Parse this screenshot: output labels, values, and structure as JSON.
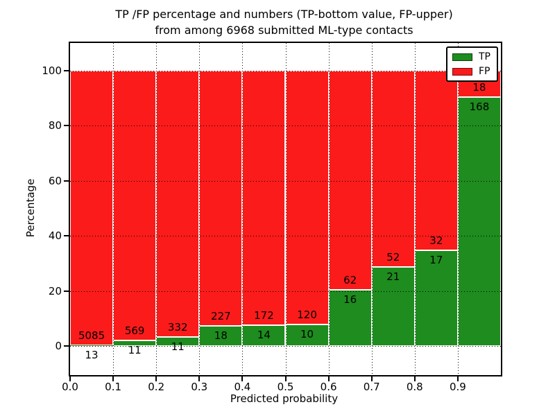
{
  "title": {
    "line1": "TP /FP percentage and numbers (TP-bottom value, FP-upper)",
    "line2": "from among 6968 submitted ML-type contacts"
  },
  "chart_data": {
    "type": "bar",
    "stacked": true,
    "normalized_to_percent": true,
    "title": "TP /FP percentage and numbers (TP-bottom value, FP-upper) from among 6968 submitted ML-type contacts",
    "total_contacts": 6968,
    "bin_starts": [
      0.0,
      0.1,
      0.2,
      0.3,
      0.4,
      0.5,
      0.6,
      0.7,
      0.8,
      0.9
    ],
    "bin_width": 0.1,
    "series": [
      {
        "name": "TP",
        "color": "#1e8c1e",
        "values": [
          13,
          11,
          11,
          18,
          14,
          10,
          16,
          21,
          17,
          168
        ]
      },
      {
        "name": "FP",
        "color": "#fb1b1b",
        "values": [
          5085,
          569,
          332,
          227,
          172,
          120,
          62,
          52,
          32,
          18
        ]
      }
    ],
    "xlabel": "Predicted probability",
    "ylabel": "Percentage",
    "xticks": [
      "0.0",
      "0.1",
      "0.2",
      "0.3",
      "0.4",
      "0.5",
      "0.6",
      "0.7",
      "0.8",
      "0.9"
    ],
    "yticks": [
      0,
      20,
      40,
      60,
      80,
      100
    ],
    "xlim": [
      0.0,
      1.0
    ],
    "ylim": [
      -10.6,
      110.1
    ],
    "grid": "dotted",
    "bar_edge_color": "#ffffff",
    "axis_color": "#000000",
    "legend_position": "upper right"
  },
  "legend": {
    "entries": [
      {
        "label": "TP",
        "color": "#1e8c1e"
      },
      {
        "label": "FP",
        "color": "#fb1b1b"
      }
    ]
  }
}
